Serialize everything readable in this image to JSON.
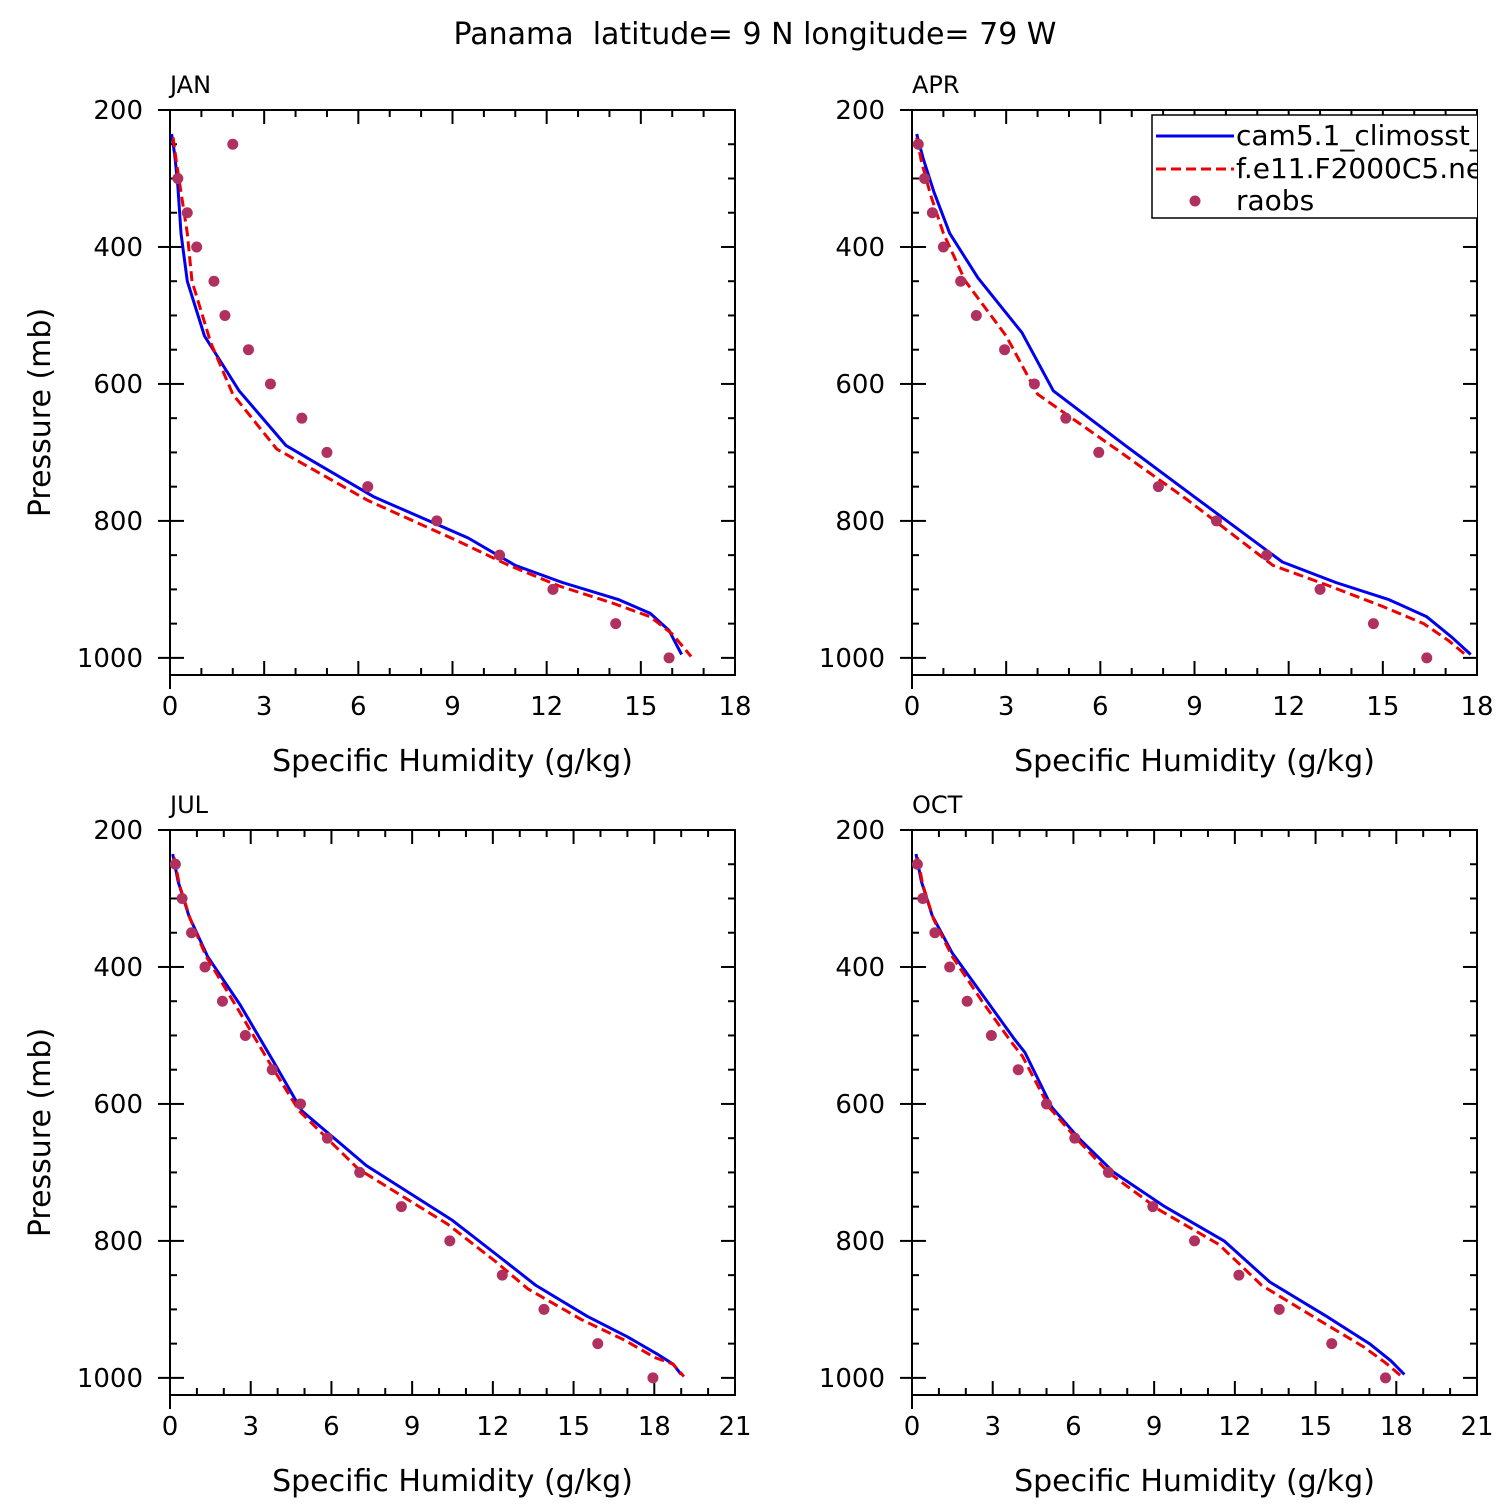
{
  "title": "Panama  latitude= 9 N longitude= 79 W",
  "legend_labels": [
    "cam5.1_climosst_",
    "f.e11.F2000C5.ne",
    "raobs"
  ],
  "colors": {
    "model1": "#0000ee",
    "model2": "#ee0000",
    "raobs": "#b03060",
    "axis": "#000000"
  },
  "chart_data": [
    {
      "type": "line",
      "panel": "JAN",
      "xlabel": "Specific Humidity (g/kg)",
      "ylabel": "Pressure (mb)",
      "xlim": [
        0,
        18
      ],
      "ylim": [
        1025,
        200
      ],
      "xticks": [
        0,
        3,
        6,
        9,
        12,
        15,
        18
      ],
      "yticks": [
        200,
        400,
        600,
        800,
        1000
      ],
      "legend": false,
      "series": [
        {
          "name": "cam5.1_climosst_",
          "style": "solid",
          "x": [
            0.05,
            0.15,
            0.25,
            0.35,
            0.55,
            1.1,
            2.2,
            3.7,
            6.5,
            9.5,
            11.0,
            12.5,
            14.3,
            15.3,
            15.9,
            16.3
          ],
          "y": [
            235,
            265,
            310,
            380,
            450,
            530,
            610,
            690,
            765,
            825,
            865,
            890,
            915,
            935,
            960,
            995
          ]
        },
        {
          "name": "f.e11.F2000C5.ne",
          "style": "dashed",
          "x": [
            0.1,
            0.2,
            0.35,
            0.55,
            0.7,
            1.3,
            2.0,
            3.4,
            6.3,
            9.2,
            10.8,
            12.4,
            14.1,
            15.3,
            16.0,
            16.6
          ],
          "y": [
            240,
            275,
            320,
            380,
            450,
            540,
            615,
            695,
            770,
            830,
            865,
            895,
            920,
            940,
            965,
            998
          ]
        }
      ],
      "points": {
        "name": "raobs",
        "x": [
          2.0,
          0.25,
          0.55,
          0.85,
          1.4,
          1.75,
          2.5,
          3.2,
          4.2,
          5.0,
          6.3,
          8.5,
          10.5,
          12.2,
          14.2,
          15.9
        ],
        "y": [
          250,
          300,
          350,
          400,
          450,
          500,
          550,
          600,
          650,
          700,
          750,
          800,
          850,
          900,
          950,
          1000
        ]
      }
    },
    {
      "type": "line",
      "panel": "APR",
      "xlabel": "Specific Humidity (g/kg)",
      "ylabel": "",
      "xlim": [
        0,
        18
      ],
      "ylim": [
        1025,
        200
      ],
      "xticks": [
        0,
        3,
        6,
        9,
        12,
        15,
        18
      ],
      "yticks": [
        200,
        400,
        600,
        800,
        1000
      ],
      "legend": true,
      "legend_position": "top-right",
      "series": [
        {
          "name": "cam5.1_climosst_",
          "style": "solid",
          "x": [
            0.15,
            0.35,
            0.7,
            1.2,
            2.1,
            3.5,
            4.5,
            6.8,
            9.0,
            11.8,
            13.5,
            15.2,
            16.4,
            17.2,
            17.8
          ],
          "y": [
            235,
            270,
            320,
            380,
            445,
            525,
            610,
            690,
            765,
            860,
            890,
            915,
            940,
            970,
            995
          ]
        },
        {
          "name": "f.e11.F2000C5.ne",
          "style": "dashed",
          "x": [
            0.15,
            0.3,
            0.6,
            1.0,
            1.7,
            3.0,
            4.0,
            6.5,
            8.8,
            11.5,
            13.3,
            15.0,
            16.3,
            17.1,
            17.7
          ],
          "y": [
            240,
            275,
            325,
            380,
            450,
            530,
            615,
            695,
            770,
            865,
            895,
            925,
            950,
            975,
            998
          ]
        }
      ],
      "points": {
        "name": "raobs",
        "x": [
          0.2,
          0.4,
          0.65,
          1.0,
          1.55,
          2.05,
          2.95,
          3.9,
          4.9,
          5.95,
          7.85,
          9.7,
          11.3,
          13.0,
          14.7,
          16.4
        ],
        "y": [
          250,
          300,
          350,
          400,
          450,
          500,
          550,
          600,
          650,
          700,
          750,
          800,
          850,
          900,
          950,
          1000
        ]
      }
    },
    {
      "type": "line",
      "panel": "JUL",
      "xlabel": "Specific Humidity (g/kg)",
      "ylabel": "Pressure (mb)",
      "xlim": [
        0,
        21
      ],
      "ylim": [
        1025,
        200
      ],
      "xticks": [
        0,
        3,
        6,
        9,
        12,
        15,
        18,
        21
      ],
      "yticks": [
        200,
        400,
        600,
        800,
        1000
      ],
      "legend": false,
      "series": [
        {
          "name": "cam5.1_climosst_",
          "style": "solid",
          "x": [
            0.1,
            0.3,
            0.7,
            1.4,
            2.6,
            3.8,
            4.9,
            7.3,
            10.5,
            12.3,
            13.6,
            15.5,
            17.0,
            18.1,
            18.7,
            19.0
          ],
          "y": [
            235,
            275,
            325,
            385,
            455,
            535,
            610,
            690,
            770,
            825,
            865,
            910,
            940,
            965,
            980,
            995
          ]
        },
        {
          "name": "f.e11.F2000C5.ne",
          "style": "dashed",
          "x": [
            0.15,
            0.35,
            0.75,
            1.35,
            2.5,
            3.7,
            4.8,
            7.0,
            10.3,
            12.1,
            13.3,
            15.3,
            16.9,
            18.0,
            18.7,
            19.1
          ],
          "y": [
            240,
            280,
            330,
            385,
            460,
            540,
            610,
            695,
            775,
            830,
            870,
            915,
            945,
            970,
            980,
            998
          ]
        }
      ],
      "points": {
        "name": "raobs",
        "x": [
          0.2,
          0.45,
          0.8,
          1.3,
          1.95,
          2.8,
          3.8,
          4.85,
          5.85,
          7.05,
          8.6,
          10.4,
          12.35,
          13.9,
          15.9,
          17.95
        ],
        "y": [
          250,
          300,
          350,
          400,
          450,
          500,
          550,
          600,
          650,
          700,
          750,
          800,
          850,
          900,
          950,
          1000
        ]
      }
    },
    {
      "type": "line",
      "panel": "OCT",
      "xlabel": "Specific Humidity (g/kg)",
      "ylabel": "",
      "xlim": [
        0,
        21
      ],
      "ylim": [
        1025,
        200
      ],
      "xticks": [
        0,
        3,
        6,
        9,
        12,
        15,
        18,
        21
      ],
      "yticks": [
        200,
        400,
        600,
        800,
        1000
      ],
      "legend": false,
      "series": [
        {
          "name": "cam5.1_climosst_",
          "style": "solid",
          "x": [
            0.15,
            0.35,
            0.75,
            1.5,
            2.7,
            3.8,
            4.2,
            5.2,
            6.2,
            7.5,
            9.4,
            11.6,
            13.3,
            15.4,
            17.0,
            17.8,
            18.3
          ],
          "y": [
            235,
            275,
            325,
            380,
            445,
            505,
            525,
            605,
            650,
            700,
            750,
            800,
            860,
            910,
            950,
            975,
            995
          ]
        },
        {
          "name": "f.e11.F2000C5.ne",
          "style": "dashed",
          "x": [
            0.2,
            0.4,
            0.8,
            1.5,
            2.6,
            3.7,
            4.1,
            5.1,
            6.1,
            7.3,
            9.2,
            11.4,
            13.0,
            15.1,
            16.8,
            17.6,
            18.2
          ],
          "y": [
            240,
            280,
            330,
            385,
            450,
            510,
            530,
            605,
            650,
            700,
            755,
            805,
            865,
            915,
            955,
            978,
            998
          ]
        }
      ],
      "points": {
        "name": "raobs",
        "x": [
          0.2,
          0.4,
          0.85,
          1.4,
          2.05,
          2.95,
          3.95,
          5.0,
          6.05,
          7.3,
          8.95,
          10.5,
          12.15,
          13.65,
          15.6,
          17.6
        ],
        "y": [
          250,
          300,
          350,
          400,
          450,
          500,
          550,
          600,
          650,
          700,
          750,
          800,
          850,
          900,
          950,
          1000
        ]
      }
    }
  ]
}
